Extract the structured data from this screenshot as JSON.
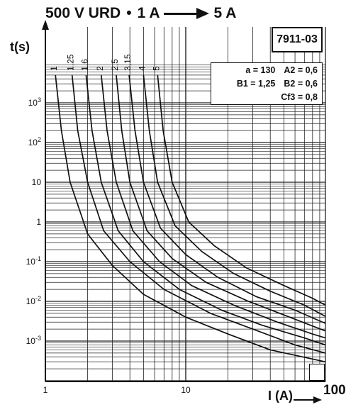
{
  "header": {
    "series_name": "500 V URD",
    "bullet": "•",
    "range_start": "1 A",
    "range_end": "5 A"
  },
  "code": "7911-03",
  "parameters": [
    [
      "a = 130",
      "A2 = 0,6"
    ],
    [
      "B1 = 1,25",
      "B2 = 0,6"
    ],
    [
      "Cf3 = 0,8"
    ]
  ],
  "chart_data": {
    "type": "line",
    "title": "500 V URD • 1 A → 5 A",
    "xlabel": "I (A)",
    "ylabel": "t(s)",
    "x_scale": "log",
    "y_scale": "log",
    "xlim": [
      1,
      100
    ],
    "ylim": [
      0.0001,
      10000
    ],
    "x_tick_labels": [
      "1",
      "10",
      "100"
    ],
    "y_tick_labels": [
      "10^3",
      "10^2",
      "10",
      "1",
      "10^-1",
      "10^-2",
      "10^-3"
    ],
    "y_tick_values": [
      1000,
      100,
      10,
      1,
      0.1,
      0.01,
      0.001
    ],
    "grid": true,
    "legend": "curve labels at top of each curve",
    "series": [
      {
        "name": "1",
        "points": [
          [
            1.18,
            5000
          ],
          [
            1.3,
            200
          ],
          [
            1.5,
            10
          ],
          [
            2,
            0.5
          ],
          [
            3,
            0.08
          ],
          [
            5,
            0.015
          ],
          [
            10,
            0.004
          ],
          [
            20,
            0.0015
          ],
          [
            40,
            0.0006
          ],
          [
            100,
            0.0003
          ]
        ]
      },
      {
        "name": "1,25",
        "points": [
          [
            1.55,
            5000
          ],
          [
            1.7,
            200
          ],
          [
            2,
            10
          ],
          [
            2.6,
            0.6
          ],
          [
            4,
            0.1
          ],
          [
            7,
            0.02
          ],
          [
            15,
            0.005
          ],
          [
            30,
            0.002
          ],
          [
            60,
            0.0008
          ],
          [
            100,
            0.0005
          ]
        ]
      },
      {
        "name": "1,6",
        "points": [
          [
            1.95,
            5000
          ],
          [
            2.15,
            200
          ],
          [
            2.5,
            10
          ],
          [
            3.3,
            0.6
          ],
          [
            5,
            0.1
          ],
          [
            9,
            0.02
          ],
          [
            18,
            0.006
          ],
          [
            35,
            0.0025
          ],
          [
            70,
            0.0012
          ],
          [
            100,
            0.0008
          ]
        ]
      },
      {
        "name": "2",
        "points": [
          [
            2.5,
            5000
          ],
          [
            2.75,
            200
          ],
          [
            3.2,
            10
          ],
          [
            4.2,
            0.6
          ],
          [
            6.5,
            0.1
          ],
          [
            11,
            0.025
          ],
          [
            22,
            0.008
          ],
          [
            45,
            0.003
          ],
          [
            80,
            0.0015
          ],
          [
            100,
            0.0012
          ]
        ]
      },
      {
        "name": "2,5",
        "points": [
          [
            3.2,
            5000
          ],
          [
            3.5,
            200
          ],
          [
            4,
            10
          ],
          [
            5.3,
            0.6
          ],
          [
            8,
            0.12
          ],
          [
            14,
            0.03
          ],
          [
            28,
            0.01
          ],
          [
            55,
            0.004
          ],
          [
            85,
            0.0022
          ],
          [
            100,
            0.0018
          ]
        ]
      },
      {
        "name": "3,15",
        "points": [
          [
            3.95,
            5000
          ],
          [
            4.35,
            200
          ],
          [
            5,
            10
          ],
          [
            6.6,
            0.7
          ],
          [
            10,
            0.15
          ],
          [
            17,
            0.04
          ],
          [
            32,
            0.013
          ],
          [
            60,
            0.006
          ],
          [
            85,
            0.0035
          ],
          [
            100,
            0.0028
          ]
        ]
      },
      {
        "name": "4",
        "points": [
          [
            5,
            5000
          ],
          [
            5.5,
            200
          ],
          [
            6.3,
            10
          ],
          [
            8.4,
            0.8
          ],
          [
            13,
            0.18
          ],
          [
            22,
            0.05
          ],
          [
            40,
            0.018
          ],
          [
            70,
            0.008
          ],
          [
            90,
            0.005
          ],
          [
            100,
            0.0042
          ]
        ]
      },
      {
        "name": "5",
        "points": [
          [
            6.3,
            5000
          ],
          [
            6.9,
            200
          ],
          [
            8,
            10
          ],
          [
            10.5,
            1
          ],
          [
            16,
            0.25
          ],
          [
            27,
            0.07
          ],
          [
            50,
            0.025
          ],
          [
            80,
            0.012
          ],
          [
            100,
            0.008
          ]
        ]
      }
    ]
  }
}
